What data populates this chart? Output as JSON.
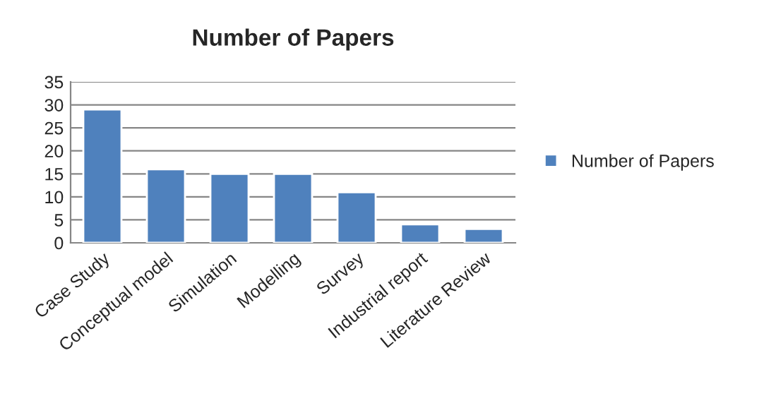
{
  "chart_data": {
    "type": "bar",
    "title": "Number of Papers",
    "categories": [
      "Case Study",
      "Conceptual model",
      "Simulation",
      "Modelling",
      "Survey",
      "Industrial report",
      "Literature Review"
    ],
    "series": [
      {
        "name": "Number of Papers",
        "color": "#4f81bd",
        "values": [
          29,
          16,
          15,
          15,
          11,
          4,
          3
        ]
      }
    ],
    "ylim": [
      0,
      35
    ],
    "yticks": [
      0,
      5,
      10,
      15,
      20,
      25,
      30,
      35
    ],
    "grid": "y",
    "legend": "right"
  }
}
